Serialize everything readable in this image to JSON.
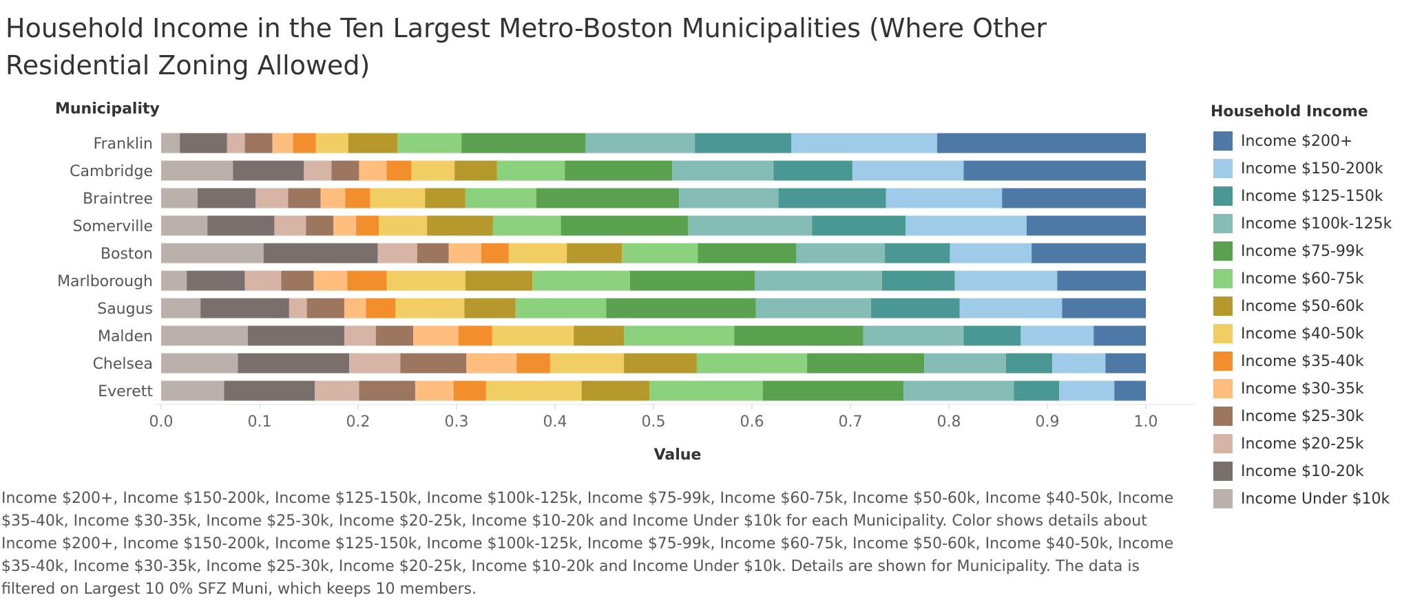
{
  "title": "Household Income in the Ten Largest Metro-Boston Municipalities (Where Other Residential Zoning Allowed)",
  "caption": "Income $200+, Income $150-200k, Income $125-150k, Income $100k-125k, Income $75-99k, Income $60-75k, Income $50-60k, Income $40-50k, Income $35-40k, Income $30-35k, Income $25-30k, Income $20-25k, Income $10-20k and Income Under $10k for each Municipality.  Color shows details about Income $200+, Income $150-200k, Income $125-150k, Income $100k-125k, Income $75-99k, Income $60-75k, Income $50-60k, Income $40-50k, Income $35-40k, Income $30-35k, Income $25-30k, Income $20-25k, Income $10-20k and Income Under $10k.  Details are shown for Municipality. The data is filtered on Largest 10 0% SFZ Muni, which keeps 10 members.",
  "legend": {
    "title": "Household Income",
    "items": [
      {
        "label": "Income $200+",
        "color": "#4e79a7"
      },
      {
        "label": "Income $150-200k",
        "color": "#a0cbe8"
      },
      {
        "label": "Income $125-150k",
        "color": "#499894"
      },
      {
        "label": "Income $100k-125k",
        "color": "#86bcb6"
      },
      {
        "label": "Income $75-99k",
        "color": "#59a14f"
      },
      {
        "label": "Income $60-75k",
        "color": "#8cd17d"
      },
      {
        "label": "Income $50-60k",
        "color": "#b6992d"
      },
      {
        "label": "Income $40-50k",
        "color": "#f1ce63"
      },
      {
        "label": "Income $35-40k",
        "color": "#f28e2b"
      },
      {
        "label": "Income $30-35k",
        "color": "#ffbe7d"
      },
      {
        "label": "Income $25-30k",
        "color": "#9d7660"
      },
      {
        "label": "Income $20-25k",
        "color": "#d7b5a6"
      },
      {
        "label": "Income $10-20k",
        "color": "#79706e"
      },
      {
        "label": "Income Under $10k",
        "color": "#bab0ac"
      }
    ]
  },
  "chart_data": {
    "type": "bar",
    "orientation": "horizontal",
    "stacked": true,
    "title": "Household Income in the Ten Largest Metro-Boston Municipalities (Where Other Residential Zoning Allowed)",
    "xlabel": "Value",
    "ylabel": "Municipality",
    "xlim": [
      0,
      1
    ],
    "xticks": [
      "0.0",
      "0.1",
      "0.2",
      "0.3",
      "0.4",
      "0.5",
      "0.6",
      "0.7",
      "0.8",
      "0.9",
      "1.0"
    ],
    "grid": false,
    "legend_position": "right",
    "categories": [
      "Franklin",
      "Cambridge",
      "Braintree",
      "Somerville",
      "Boston",
      "Marlborough",
      "Saugus",
      "Malden",
      "Chelsea",
      "Everett"
    ],
    "series": [
      {
        "name": "Income Under $10k",
        "values": [
          0.019,
          0.073,
          0.037,
          0.047,
          0.104,
          0.026,
          0.04,
          0.088,
          0.078,
          0.064
        ]
      },
      {
        "name": "Income $10-20k",
        "values": [
          0.048,
          0.072,
          0.059,
          0.068,
          0.116,
          0.059,
          0.09,
          0.098,
          0.113,
          0.092
        ]
      },
      {
        "name": "Income $20-25k",
        "values": [
          0.018,
          0.028,
          0.033,
          0.032,
          0.04,
          0.037,
          0.018,
          0.032,
          0.052,
          0.045
        ]
      },
      {
        "name": "Income $25-30k",
        "values": [
          0.028,
          0.028,
          0.033,
          0.028,
          0.032,
          0.033,
          0.038,
          0.038,
          0.067,
          0.057
        ]
      },
      {
        "name": "Income $30-35k",
        "values": [
          0.021,
          0.028,
          0.025,
          0.023,
          0.033,
          0.034,
          0.022,
          0.046,
          0.051,
          0.039
        ]
      },
      {
        "name": "Income $35-40k",
        "values": [
          0.023,
          0.025,
          0.025,
          0.023,
          0.028,
          0.04,
          0.03,
          0.034,
          0.034,
          0.033
        ]
      },
      {
        "name": "Income $40-50k",
        "values": [
          0.033,
          0.044,
          0.056,
          0.049,
          0.059,
          0.08,
          0.07,
          0.083,
          0.075,
          0.097
        ]
      },
      {
        "name": "Income $50-60k",
        "values": [
          0.05,
          0.043,
          0.041,
          0.067,
          0.056,
          0.068,
          0.052,
          0.051,
          0.074,
          0.069
        ]
      },
      {
        "name": "Income $60-75k",
        "values": [
          0.065,
          0.069,
          0.072,
          0.069,
          0.077,
          0.099,
          0.092,
          0.112,
          0.112,
          0.115
        ]
      },
      {
        "name": "Income $75-99k",
        "values": [
          0.126,
          0.109,
          0.145,
          0.129,
          0.1,
          0.127,
          0.152,
          0.131,
          0.119,
          0.143
        ]
      },
      {
        "name": "Income $100k-125k",
        "values": [
          0.111,
          0.103,
          0.101,
          0.126,
          0.09,
          0.129,
          0.117,
          0.102,
          0.083,
          0.112
        ]
      },
      {
        "name": "Income $125-150k",
        "values": [
          0.098,
          0.08,
          0.109,
          0.095,
          0.066,
          0.074,
          0.09,
          0.058,
          0.047,
          0.046
        ]
      },
      {
        "name": "Income $150-200k",
        "values": [
          0.148,
          0.113,
          0.118,
          0.123,
          0.083,
          0.104,
          0.104,
          0.074,
          0.054,
          0.056
        ]
      },
      {
        "name": "Income $200+",
        "values": [
          0.212,
          0.185,
          0.146,
          0.121,
          0.116,
          0.09,
          0.085,
          0.053,
          0.041,
          0.032
        ]
      }
    ]
  }
}
